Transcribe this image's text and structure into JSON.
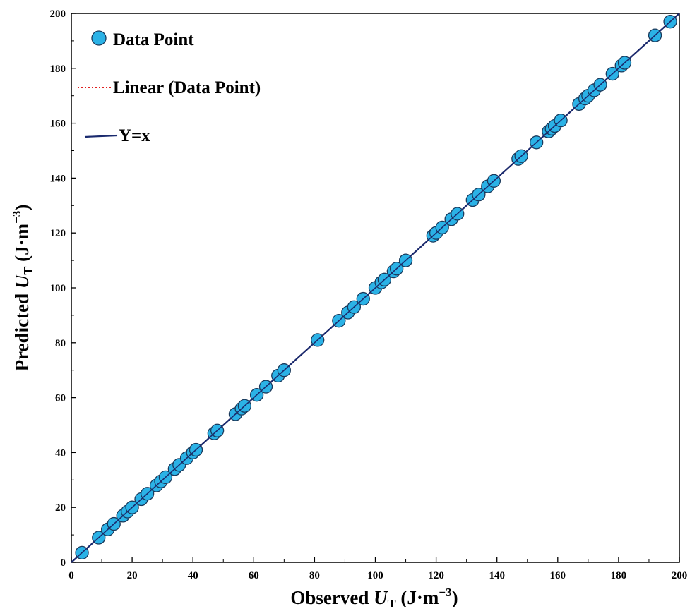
{
  "chart_data": {
    "type": "scatter",
    "title": "",
    "xlabel": {
      "prefix": "Observed ",
      "symbol": "U",
      "sub": "T",
      "unit_open": " (J·m",
      "sup": "−3",
      "unit_close": ")"
    },
    "ylabel": {
      "prefix": "Predicted ",
      "symbol": "U",
      "sub": "T",
      "unit_open": " (J·m",
      "sup": "−3",
      "unit_close": ")"
    },
    "xlim": [
      0,
      200
    ],
    "ylim": [
      0,
      200
    ],
    "xticks": [
      "0",
      "20",
      "40",
      "60",
      "80",
      "100",
      "120",
      "140",
      "160",
      "180",
      "200"
    ],
    "yticks": [
      "0",
      "20",
      "40",
      "60",
      "80",
      "100",
      "120",
      "140",
      "160",
      "180",
      "200"
    ],
    "grid": false,
    "legend_position": "top-left",
    "legend": [
      {
        "label": "Data Point",
        "kind": "marker"
      },
      {
        "label": "Linear (Data Point)",
        "kind": "dotted-line"
      },
      {
        "label": "Y=x",
        "kind": "solid-line"
      }
    ],
    "series": [
      {
        "name": "Data Point",
        "color": "#2bb2e6",
        "edge_color": "#1a3a5c",
        "x": [
          3.5,
          9,
          12,
          14,
          17,
          18.5,
          20,
          23,
          25,
          28,
          29.5,
          31,
          34,
          35.5,
          38,
          40,
          41,
          47,
          48,
          54,
          56,
          57,
          61,
          64,
          68,
          70,
          81,
          88,
          91,
          93,
          96,
          100,
          102,
          103,
          106,
          107,
          110,
          119,
          120,
          122,
          125,
          127,
          132,
          134,
          137,
          139,
          147,
          148,
          153,
          157,
          158,
          159,
          161,
          167,
          169,
          170,
          172,
          174,
          178,
          181,
          182,
          192,
          197
        ],
        "y": [
          3.5,
          9,
          12,
          14,
          17,
          18.5,
          20,
          23,
          25,
          28,
          29.5,
          31,
          34,
          35.5,
          38,
          40,
          41,
          47,
          48,
          54,
          56,
          57,
          61,
          64,
          68,
          70,
          81,
          88,
          91,
          93,
          96,
          100,
          102,
          103,
          106,
          107,
          110,
          119,
          120,
          122,
          125,
          127,
          132,
          134,
          137,
          139,
          147,
          148,
          153,
          157,
          158,
          159,
          161,
          167,
          169,
          170,
          172,
          174,
          178,
          181,
          182,
          192,
          197
        ]
      },
      {
        "name": "Linear (Data Point)",
        "color": "#e02020",
        "style": "dotted",
        "x": [
          0,
          200
        ],
        "y": [
          0,
          200
        ]
      },
      {
        "name": "Y=x",
        "color": "#1a2a6e",
        "style": "solid",
        "x": [
          0,
          200
        ],
        "y": [
          0,
          200
        ]
      }
    ]
  }
}
